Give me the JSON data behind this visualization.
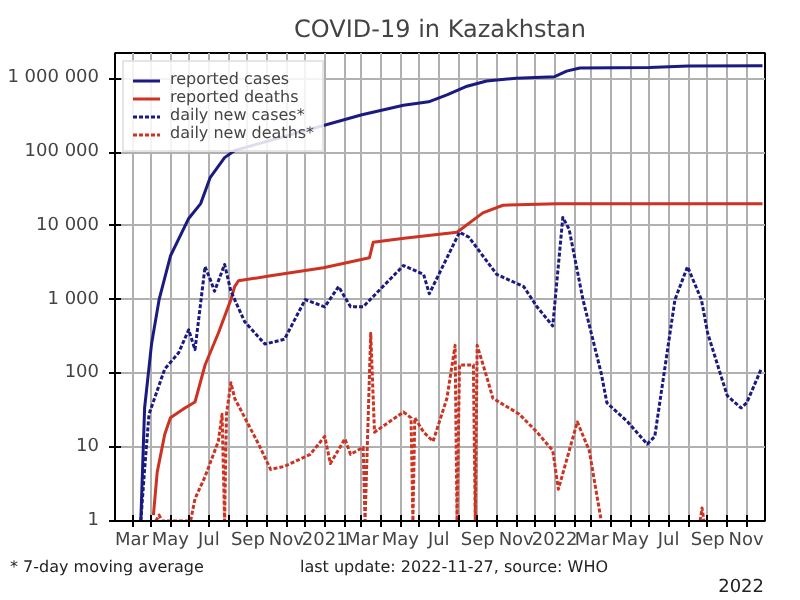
{
  "chart_data": {
    "type": "line",
    "title": "COVID-19 in Kazakhstan",
    "annotations": [
      "* 7-day moving average",
      "last update: 2022-11-27, source: WHO",
      "2022"
    ],
    "log": "y",
    "grid": true,
    "legend": "top left",
    "xlim": [
      "2020-02-03",
      "2022-12-01"
    ],
    "xticks": [
      {
        "value": "2020-03-01",
        "label": "Mar"
      },
      {
        "value": "2020-04-01",
        "label": null
      },
      {
        "value": "2020-05-01",
        "label": "May"
      },
      {
        "value": "2020-06-01",
        "label": null
      },
      {
        "value": "2020-07-01",
        "label": "Jul"
      },
      {
        "value": "2020-08-01",
        "label": null
      },
      {
        "value": "2020-09-01",
        "label": "Sep"
      },
      {
        "value": "2020-10-01",
        "label": null
      },
      {
        "value": "2020-11-01",
        "label": "Nov"
      },
      {
        "value": "2020-12-01",
        "label": null
      },
      {
        "value": "2021-01-01",
        "label": "2021"
      },
      {
        "value": "2021-02-01",
        "label": null
      },
      {
        "value": "2021-03-01",
        "label": "Mar"
      },
      {
        "value": "2021-04-01",
        "label": null
      },
      {
        "value": "2021-05-01",
        "label": "May"
      },
      {
        "value": "2021-06-01",
        "label": null
      },
      {
        "value": "2021-07-01",
        "label": "Jul"
      },
      {
        "value": "2021-08-01",
        "label": null
      },
      {
        "value": "2021-09-01",
        "label": "Sep"
      },
      {
        "value": "2021-10-01",
        "label": null
      },
      {
        "value": "2021-11-01",
        "label": "Nov"
      },
      {
        "value": "2021-12-01",
        "label": null
      },
      {
        "value": "2022-01-01",
        "label": "2022"
      },
      {
        "value": "2022-02-01",
        "label": null
      },
      {
        "value": "2022-03-01",
        "label": "Mar"
      },
      {
        "value": "2022-04-01",
        "label": null
      },
      {
        "value": "2022-05-01",
        "label": "May"
      },
      {
        "value": "2022-06-01",
        "label": null
      },
      {
        "value": "2022-07-01",
        "label": "Jul"
      },
      {
        "value": "2022-08-01",
        "label": null
      },
      {
        "value": "2022-09-01",
        "label": "Sep"
      },
      {
        "value": "2022-10-01",
        "label": null
      },
      {
        "value": "2022-11-01",
        "label": "Nov"
      }
    ],
    "ylim": [
      1,
      2200000
    ],
    "yticks": [
      1,
      {
        "value": 10,
        "label": "10"
      },
      {
        "value": 100,
        "label": "100"
      },
      {
        "value": 1000,
        "label": "1 000"
      },
      {
        "value": 10000,
        "label": "10 000"
      },
      {
        "value": 100000,
        "label": "100 000"
      },
      {
        "value": 1000000,
        "label": "1 000 000"
      }
    ],
    "series": [
      {
        "name": "reported cases",
        "color": "#1a1a80",
        "line_style": "solid",
        "x": [
          "2020-03-15",
          "2020-03-21",
          "2020-04-01",
          "2020-04-13",
          "2020-05-01",
          "2020-05-30",
          "2020-06-18",
          "2020-07-03",
          "2020-07-26",
          "2020-08-11",
          "2021-03-01",
          "2021-05-06",
          "2021-06-15",
          "2021-07-15",
          "2021-08-15",
          "2021-09-15",
          "2021-11-01",
          "2022-01-01",
          "2022-01-20",
          "2022-02-10",
          "2022-06-01",
          "2022-08-01",
          "2022-11-27"
        ],
        "values": [
          1,
          34,
          250,
          1000,
          3900,
          12600,
          20000,
          45000,
          84000,
          105000,
          320000,
          430000,
          480000,
          600000,
          780000,
          920000,
          1000000,
          1050000,
          1250000,
          1380000,
          1400000,
          1470000,
          1480000
        ]
      },
      {
        "name": "reported deaths",
        "color": "#cc3322",
        "line_style": "solid",
        "x": [
          "2020-04-04",
          "2020-04-10",
          "2020-04-22",
          "2020-05-01",
          "2020-05-24",
          "2020-06-09",
          "2020-06-25",
          "2020-07-16",
          "2020-08-05",
          "2020-08-11",
          "2020-08-17",
          "2020-10-07",
          "2020-12-30",
          "2021-03-13",
          "2021-03-19",
          "2021-05-07",
          "2021-07-30",
          "2021-09-09",
          "2021-10-11",
          "2022-01-05",
          "2022-11-27"
        ],
        "values": [
          1.2,
          4.6,
          15,
          25,
          34,
          41,
          130,
          350,
          1000,
          1500,
          1800,
          2100,
          2700,
          3700,
          6000,
          6800,
          8200,
          15000,
          19000,
          20000,
          20000
        ]
      },
      {
        "name": "daily new cases*",
        "color": "#1a1a80",
        "line_style": "dotted",
        "x": [
          "2020-03-15",
          "2020-03-21",
          "2020-03-28",
          "2020-04-22",
          "2020-05-14",
          "2020-05-30",
          "2020-06-09",
          "2020-06-25",
          "2020-07-04",
          "2020-07-10",
          "2020-07-26",
          "2020-08-05",
          "2020-08-27",
          "2020-09-28",
          "2020-10-29",
          "2020-12-01",
          "2021-01-01",
          "2021-01-23",
          "2021-02-11",
          "2021-03-03",
          "2021-05-06",
          "2021-06-07",
          "2021-06-16",
          "2021-08-03",
          "2021-08-18",
          "2021-10-01",
          "2021-11-13",
          "2021-12-04",
          "2021-12-29",
          "2022-01-14",
          "2022-01-24",
          "2022-02-15",
          "2022-03-16",
          "2022-03-25",
          "2022-04-27",
          "2022-05-28",
          "2022-06-09",
          "2022-07-11",
          "2022-07-31",
          "2022-08-22",
          "2022-09-01",
          "2022-10-02",
          "2022-10-24",
          "2022-11-02",
          "2022-11-25"
        ],
        "values": [
          1,
          5,
          28,
          115,
          190,
          390,
          210,
          2800,
          1800,
          1300,
          3000,
          1300,
          500,
          250,
          290,
          1000,
          800,
          1500,
          800,
          800,
          2900,
          2200,
          1200,
          8200,
          7000,
          2200,
          1500,
          800,
          440,
          13000,
          9000,
          1000,
          100,
          40,
          22,
          11,
          14,
          1000,
          2800,
          1000,
          350,
          50,
          34,
          40,
          115
        ]
      },
      {
        "name": "daily new deaths*",
        "color": "#cc3322",
        "line_style": "dotted",
        "x": [
          "2020-04-08",
          "2020-04-13",
          "2020-04-18",
          "2020-06-02",
          "2020-06-09",
          "2020-06-25",
          "2020-07-16",
          "2020-07-22",
          "2020-07-26",
          "2020-07-29",
          "2020-08-05",
          "2020-08-11",
          "2020-09-18",
          "2020-10-07",
          "2020-10-29",
          "2020-12-09",
          "2021-01-01",
          "2021-01-10",
          "2021-02-02",
          "2021-02-11",
          "2021-03-03",
          "2021-03-06",
          "2021-03-15",
          "2021-03-21",
          "2021-05-06",
          "2021-05-18",
          "2021-05-21",
          "2021-05-24",
          "2021-06-07",
          "2021-06-22",
          "2021-07-14",
          "2021-07-27",
          "2021-07-30",
          "2021-08-03",
          "2021-08-25",
          "2021-08-28",
          "2021-08-31",
          "2021-09-16",
          "2021-09-25",
          "2021-11-06",
          "2021-12-04",
          "2021-12-29",
          "2022-01-07",
          "2022-02-06",
          "2022-02-25",
          "2022-03-16",
          "2022-05-01",
          "2022-08-20",
          "2022-08-23",
          "2022-08-26"
        ],
        "values": [
          1,
          1.2,
          1,
          1,
          2,
          4,
          12,
          28,
          1,
          28,
          75,
          46,
          11,
          5,
          5.5,
          8,
          14,
          6,
          13,
          8,
          10,
          1,
          350,
          16,
          30,
          25,
          1,
          25,
          16,
          12,
          46,
          240,
          1,
          130,
          130,
          1,
          240,
          85,
          46,
          28,
          16,
          9,
          2.7,
          22,
          9,
          1,
          null,
          1,
          1.5,
          1
        ]
      }
    ]
  }
}
